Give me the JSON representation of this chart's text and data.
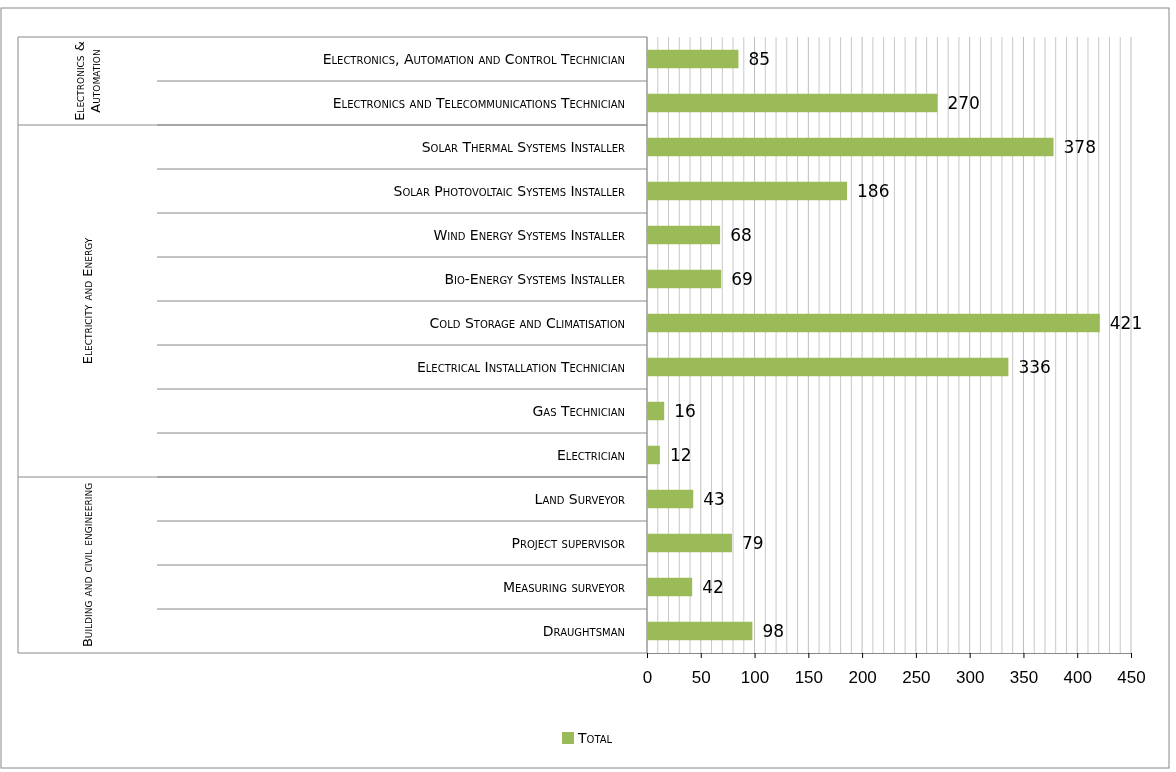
{
  "chart_data": {
    "type": "bar",
    "orientation": "horizontal",
    "categories": [
      "Electronics, Automation and Control Technician",
      "Electronics and Telecommunications Technician",
      "Solar Thermal Systems Installer",
      "Solar Photovoltaic Systems Installer",
      "Wind Energy Systems Installer",
      "Bio-Energy Systems Installer",
      "Cold Storage and Climatisation",
      "Electrical Installation Technician",
      "Gas Technician",
      "Electrician",
      "Land Surveyor",
      "Project supervisor",
      "Measuring surveyor",
      "Draughtsman"
    ],
    "series": [
      {
        "name": "Total",
        "color": "#9bbb59",
        "values": [
          85,
          270,
          378,
          186,
          68,
          69,
          421,
          336,
          16,
          12,
          43,
          79,
          42,
          98
        ]
      }
    ],
    "xlim": [
      0,
      450
    ],
    "xticks": [
      0,
      50,
      100,
      150,
      200,
      250,
      300,
      350,
      400,
      450
    ],
    "annotations": [
      "Electronics & Automation",
      "Electricity and Energy",
      "Building and civil engineering"
    ],
    "data_labels": true,
    "grid": "x",
    "legend": "bottom"
  }
}
